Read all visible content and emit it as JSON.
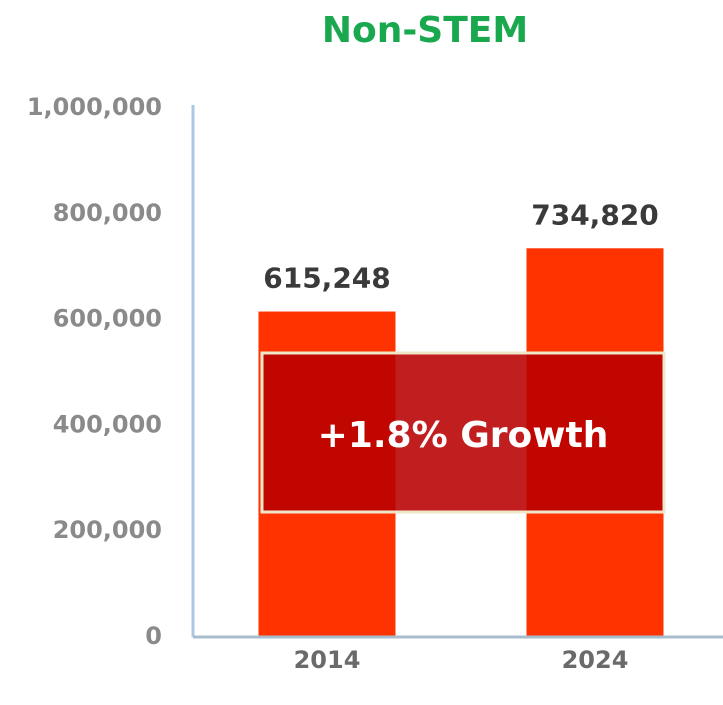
{
  "chart_data": {
    "type": "bar",
    "title": "Non-STEM",
    "categories": [
      "2014",
      "2024"
    ],
    "values": [
      615248,
      734820
    ],
    "value_labels": [
      "615,248",
      "734,820"
    ],
    "color": "#ff3300",
    "ylim": [
      0,
      1000000
    ],
    "yticks": [
      0,
      {
        "value": 200000,
        "label": "200,000"
      },
      {
        "value": 400000,
        "label": "400,000"
      },
      {
        "value": 600000,
        "label": "600,000"
      },
      {
        "value": 800000,
        "label": "800,000"
      },
      {
        "value": 1000000,
        "label": "1,000,000"
      }
    ],
    "grid": false,
    "annotation": "+1.8% Growth"
  }
}
